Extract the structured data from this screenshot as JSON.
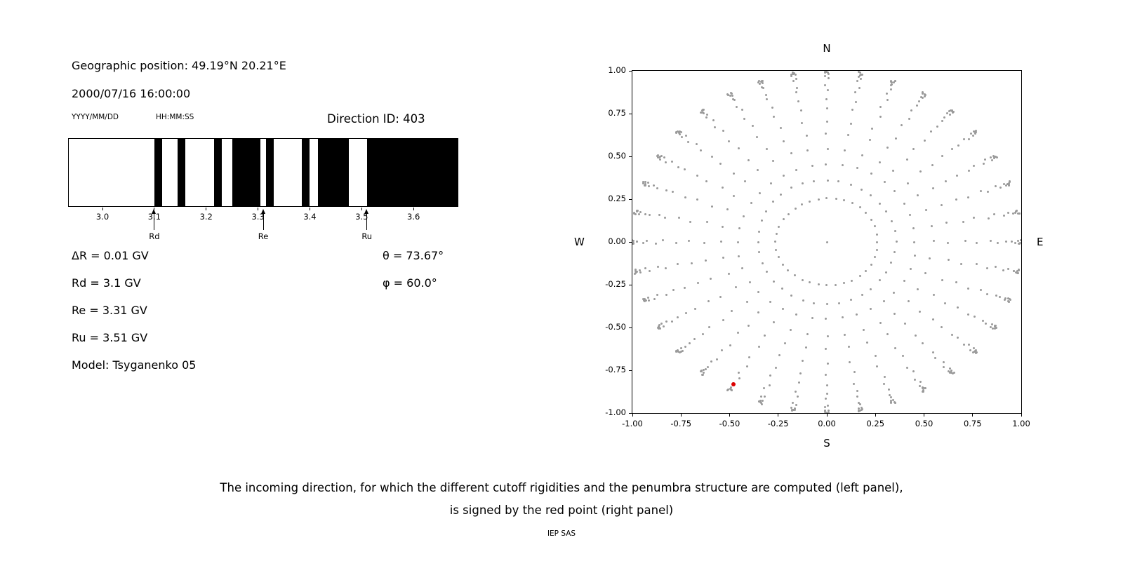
{
  "left_panel": {
    "geo_position": "Geographic position: 49.19°N 20.21°E",
    "datetime": "2000/07/16 16:00:00",
    "date_format": "YYYY/MM/DD",
    "time_format": "HH:MM:SS",
    "direction_id": "Direction ID: 403",
    "delta_r": "ΔR = 0.01 GV",
    "rd": "Rd = 3.1 GV",
    "re": "Re = 3.31 GV",
    "ru": "Ru = 3.51 GV",
    "model": "Model: Tsyganenko 05",
    "theta": "θ = 73.67°",
    "phi": "φ = 60.0°"
  },
  "caption": {
    "line1": "The incoming direction, for which the different cutoff rigidities and the penumbra structure are computed (left panel),",
    "line2": "is signed by the red point (right panel)"
  },
  "footer": "IEP SAS",
  "chart_data": [
    {
      "type": "bar",
      "name": "penumbra-structure",
      "title": "",
      "xlabel": "",
      "xlim": [
        2.935,
        3.685
      ],
      "xticks": [
        3.0,
        3.1,
        3.2,
        3.3,
        3.4,
        3.5,
        3.6
      ],
      "tick_format_decimals": 1,
      "band_color": "#000000",
      "allowed_bands_gv": [
        [
          3.1,
          3.115
        ],
        [
          3.145,
          3.16
        ],
        [
          3.215,
          3.23
        ],
        [
          3.25,
          3.305
        ],
        [
          3.315,
          3.33
        ],
        [
          3.385,
          3.4
        ],
        [
          3.415,
          3.475
        ],
        [
          3.51,
          3.685
        ]
      ],
      "markers": [
        {
          "label": "Rd",
          "x_gv": 3.1
        },
        {
          "label": "Re",
          "x_gv": 3.31
        },
        {
          "label": "Ru",
          "x_gv": 3.51
        }
      ]
    },
    {
      "type": "scatter",
      "name": "direction-map",
      "title": "",
      "xlim": [
        -1,
        1
      ],
      "ylim": [
        -1,
        1
      ],
      "xticks": [
        -1.0,
        -0.75,
        -0.5,
        -0.25,
        0.0,
        0.25,
        0.5,
        0.75,
        1.0
      ],
      "yticks": [
        1.0,
        0.75,
        0.5,
        0.25,
        0.0,
        -0.25,
        -0.5,
        -0.75,
        -1.0
      ],
      "tick_format_decimals": 2,
      "compass": {
        "top": "N",
        "bottom": "S",
        "left": "W",
        "right": "E"
      },
      "grid_dots": {
        "azimuth_start_deg": 0,
        "azimuth_step_deg": 10,
        "azimuth_count": 36,
        "zenith_deg": [
          15,
          21,
          27,
          33,
          39,
          45,
          51,
          57,
          62,
          67,
          72,
          76,
          79,
          82,
          84,
          86,
          88,
          89,
          89.7
        ],
        "radius_rule": "sin(zenith)",
        "color": "#9a9a9a",
        "include_center_dot": true
      },
      "red_point": {
        "x": -0.48,
        "y": -0.83,
        "color": "#dd0000",
        "label": "incoming direction"
      }
    }
  ]
}
